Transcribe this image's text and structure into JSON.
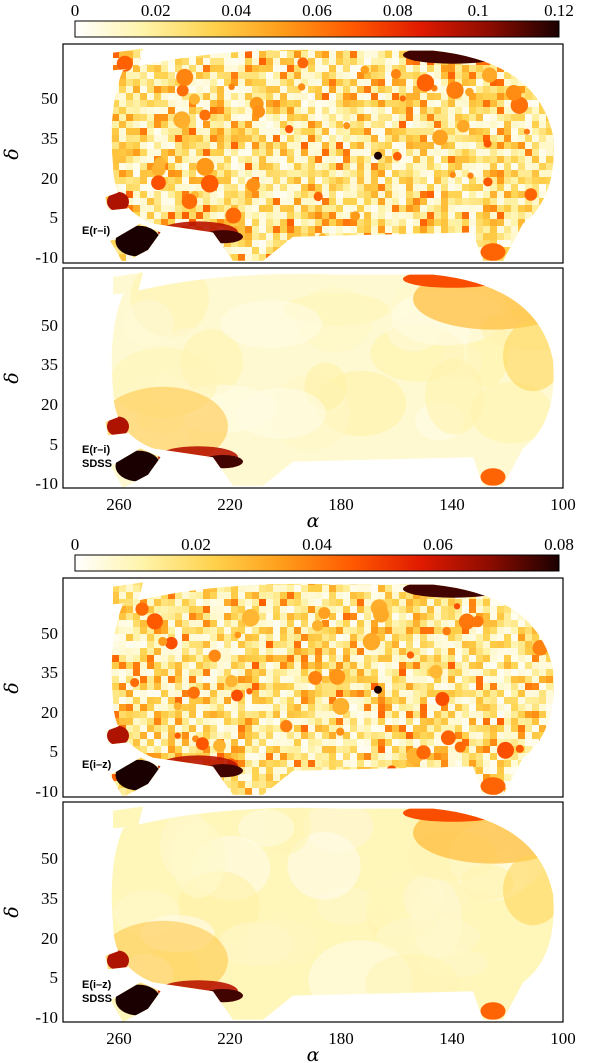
{
  "chart_data": [
    {
      "type": "heatmap",
      "colorbar": {
        "min": 0,
        "max": 0.12,
        "ticks": [
          "0",
          "0.02",
          "0.04",
          "0.06",
          "0.08",
          "0.1",
          "0.12"
        ]
      },
      "colormap": [
        "#ffffff",
        "#fff3a8",
        "#ffd24d",
        "#ff9d1a",
        "#ff5a00",
        "#e01a00",
        "#8c0c00",
        "#1a0000"
      ],
      "xlabel": "α",
      "ylabel": "δ",
      "xticks": [
        "260",
        "220",
        "180",
        "140",
        "100"
      ],
      "xlim": [
        280,
        100
      ],
      "yticks": [
        "50",
        "35",
        "20",
        "5",
        "-10"
      ],
      "ylim": [
        -13,
        70
      ],
      "panels": [
        {
          "label": [
            "E(r–i)"
          ],
          "style": "patchy",
          "mean_value": 0.02
        },
        {
          "label": [
            "E(r–i)",
            "SDSS"
          ],
          "style": "smooth",
          "mean_value": 0.01
        }
      ]
    },
    {
      "type": "heatmap",
      "colorbar": {
        "min": 0,
        "max": 0.08,
        "ticks": [
          "0",
          "0.02",
          "0.04",
          "0.06",
          "0.08"
        ]
      },
      "colormap": [
        "#ffffff",
        "#fff3a8",
        "#ffd24d",
        "#ff9d1a",
        "#ff5a00",
        "#e01a00",
        "#8c0c00",
        "#1a0000"
      ],
      "xlabel": "α",
      "ylabel": "δ",
      "xticks": [
        "260",
        "220",
        "180",
        "140",
        "100"
      ],
      "xlim": [
        280,
        100
      ],
      "yticks": [
        "50",
        "35",
        "20",
        "5",
        "-10"
      ],
      "ylim": [
        -13,
        70
      ],
      "panels": [
        {
          "label": [
            "E(i–z)"
          ],
          "style": "patchy",
          "mean_value": 0.015
        },
        {
          "label": [
            "E(i–z)",
            "SDSS"
          ],
          "style": "smooth",
          "mean_value": 0.01
        }
      ]
    }
  ]
}
